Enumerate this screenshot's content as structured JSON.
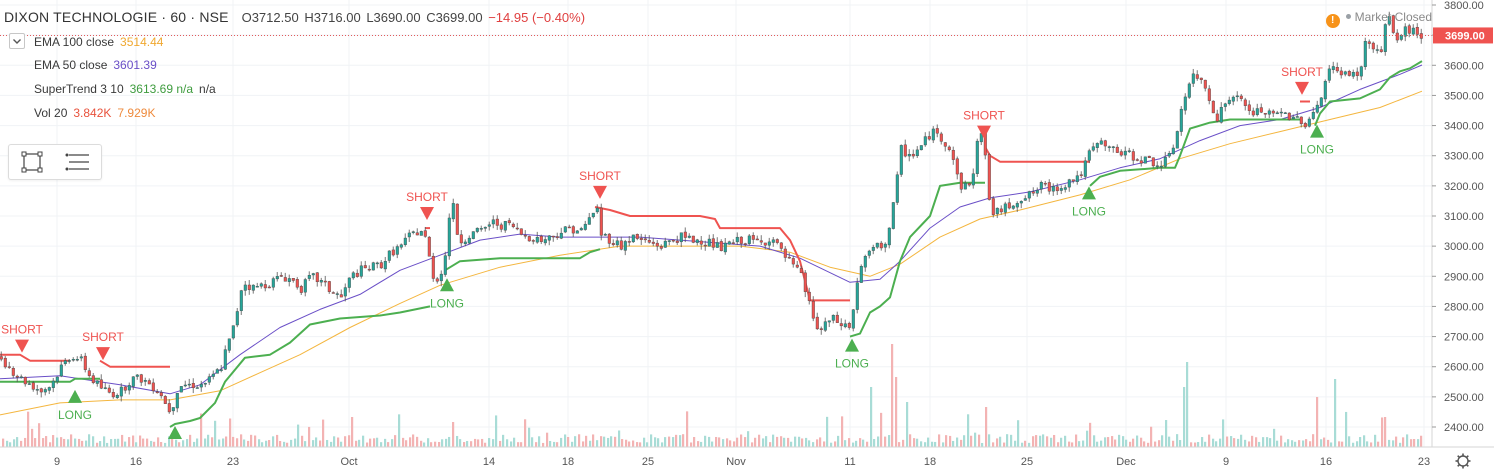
{
  "header": {
    "symbol": "DIXON TECHNOLOGIE · 60 · NSE",
    "open": "O3712.50",
    "high": "H3716.00",
    "low": "L3690.00",
    "close": "C3699.00",
    "change": "−14.95 (−0.40%)"
  },
  "indicators": [
    {
      "label": "EMA 100 close",
      "value": "3514.44",
      "color": "#f0a830"
    },
    {
      "label": "EMA 50 close",
      "value": "3601.39",
      "color": "#7b52c9"
    },
    {
      "label": "SuperTrend 3 10",
      "value": "3613.69  n/a",
      "extra": "n/a",
      "color": "#3f9c3f"
    },
    {
      "label": "Vol 20",
      "value": "3.842K",
      "extra": "7.929K",
      "color": "#e8523c",
      "extra_color": "#ee8a3c"
    }
  ],
  "status": {
    "label": "Market Closed"
  },
  "price_label": "3699.00",
  "colors": {
    "up": "#26a69a",
    "down": "#ef5350",
    "ema100": "#f4b63f",
    "ema50": "#6a4fc7",
    "supertrend_up": "#4caf50",
    "supertrend_down": "#ef5350",
    "long": "#4caf50",
    "short": "#ef5350"
  },
  "chart_data": {
    "type": "candlestick",
    "y_ticks": [
      3800,
      3700,
      3600,
      3500,
      3400,
      3300,
      3200,
      3100,
      3000,
      2900,
      2800,
      2700,
      2600,
      2500,
      2400
    ],
    "ylim": [
      2360,
      3820
    ],
    "x_ticks": [
      "9",
      "16",
      "23",
      "Oct",
      "14",
      "18",
      "25",
      "Nov",
      "11",
      "18",
      "25",
      "Dec",
      "9",
      "16",
      "23"
    ],
    "close_path": [
      [
        0,
        2630
      ],
      [
        10,
        2590
      ],
      [
        20,
        2560
      ],
      [
        30,
        2540
      ],
      [
        40,
        2520
      ],
      [
        50,
        2540
      ],
      [
        60,
        2600
      ],
      [
        70,
        2640
      ],
      [
        80,
        2620
      ],
      [
        90,
        2560
      ],
      [
        100,
        2530
      ],
      [
        110,
        2510
      ],
      [
        120,
        2520
      ],
      [
        130,
        2560
      ],
      [
        140,
        2560
      ],
      [
        150,
        2540
      ],
      [
        160,
        2510
      ],
      [
        165,
        2470
      ],
      [
        170,
        2450
      ],
      [
        175,
        2520
      ],
      [
        180,
        2540
      ],
      [
        190,
        2540
      ],
      [
        200,
        2540
      ],
      [
        210,
        2560
      ],
      [
        220,
        2600
      ],
      [
        225,
        2660
      ],
      [
        230,
        2700
      ],
      [
        235,
        2770
      ],
      [
        240,
        2860
      ],
      [
        245,
        2880
      ],
      [
        250,
        2860
      ],
      [
        260,
        2870
      ],
      [
        270,
        2880
      ],
      [
        280,
        2900
      ],
      [
        290,
        2890
      ],
      [
        300,
        2860
      ],
      [
        310,
        2900
      ],
      [
        320,
        2880
      ],
      [
        330,
        2850
      ],
      [
        340,
        2830
      ],
      [
        350,
        2900
      ],
      [
        360,
        2920
      ],
      [
        370,
        2930
      ],
      [
        380,
        2940
      ],
      [
        390,
        2980
      ],
      [
        400,
        3000
      ],
      [
        410,
        3040
      ],
      [
        420,
        3050
      ],
      [
        425,
        3020
      ],
      [
        430,
        2920
      ],
      [
        435,
        2880
      ],
      [
        440,
        2920
      ],
      [
        445,
        2980
      ],
      [
        450,
        3180
      ],
      [
        455,
        3050
      ],
      [
        460,
        3020
      ],
      [
        470,
        3040
      ],
      [
        480,
        3050
      ],
      [
        490,
        3080
      ],
      [
        500,
        3070
      ],
      [
        510,
        3070
      ],
      [
        520,
        3040
      ],
      [
        530,
        3030
      ],
      [
        540,
        3020
      ],
      [
        550,
        3030
      ],
      [
        560,
        3050
      ],
      [
        570,
        3060
      ],
      [
        580,
        3050
      ],
      [
        590,
        3100
      ],
      [
        595,
        3140
      ],
      [
        600,
        3040
      ],
      [
        610,
        3020
      ],
      [
        620,
        3000
      ],
      [
        630,
        3030
      ],
      [
        640,
        3020
      ],
      [
        650,
        3010
      ],
      [
        660,
        3000
      ],
      [
        670,
        3020
      ],
      [
        680,
        3030
      ],
      [
        690,
        3020
      ],
      [
        700,
        3020
      ],
      [
        710,
        3010
      ],
      [
        720,
        2990
      ],
      [
        730,
        3010
      ],
      [
        740,
        3020
      ],
      [
        750,
        3020
      ],
      [
        760,
        3010
      ],
      [
        770,
        3030
      ],
      [
        780,
        2980
      ],
      [
        790,
        2940
      ],
      [
        800,
        2900
      ],
      [
        805,
        2840
      ],
      [
        810,
        2790
      ],
      [
        815,
        2730
      ],
      [
        820,
        2720
      ],
      [
        830,
        2760
      ],
      [
        840,
        2740
      ],
      [
        850,
        2730
      ],
      [
        855,
        2870
      ],
      [
        860,
        2930
      ],
      [
        870,
        2990
      ],
      [
        880,
        3000
      ],
      [
        885,
        3020
      ],
      [
        890,
        3090
      ],
      [
        895,
        3200
      ],
      [
        900,
        3320
      ],
      [
        910,
        3300
      ],
      [
        920,
        3330
      ],
      [
        930,
        3380
      ],
      [
        940,
        3360
      ],
      [
        950,
        3320
      ],
      [
        955,
        3240
      ],
      [
        960,
        3200
      ],
      [
        970,
        3200
      ],
      [
        975,
        3330
      ],
      [
        980,
        3380
      ],
      [
        985,
        3270
      ],
      [
        990,
        3100
      ],
      [
        1000,
        3120
      ],
      [
        1010,
        3140
      ],
      [
        1020,
        3160
      ],
      [
        1030,
        3170
      ],
      [
        1040,
        3200
      ],
      [
        1050,
        3190
      ],
      [
        1060,
        3200
      ],
      [
        1070,
        3220
      ],
      [
        1080,
        3240
      ],
      [
        1090,
        3320
      ],
      [
        1100,
        3340
      ],
      [
        1110,
        3320
      ],
      [
        1120,
        3310
      ],
      [
        1130,
        3300
      ],
      [
        1140,
        3290
      ],
      [
        1150,
        3280
      ],
      [
        1160,
        3270
      ],
      [
        1170,
        3300
      ],
      [
        1180,
        3450
      ],
      [
        1190,
        3560
      ],
      [
        1200,
        3550
      ],
      [
        1210,
        3480
      ],
      [
        1215,
        3420
      ],
      [
        1220,
        3450
      ],
      [
        1230,
        3500
      ],
      [
        1240,
        3480
      ],
      [
        1250,
        3440
      ],
      [
        1260,
        3450
      ],
      [
        1270,
        3430
      ],
      [
        1280,
        3440
      ],
      [
        1290,
        3430
      ],
      [
        1300,
        3420
      ],
      [
        1305,
        3400
      ],
      [
        1310,
        3440
      ],
      [
        1320,
        3490
      ],
      [
        1325,
        3560
      ],
      [
        1330,
        3590
      ],
      [
        1340,
        3580
      ],
      [
        1350,
        3560
      ],
      [
        1360,
        3590
      ],
      [
        1365,
        3690
      ],
      [
        1370,
        3660
      ],
      [
        1380,
        3640
      ],
      [
        1385,
        3760
      ],
      [
        1390,
        3740
      ],
      [
        1395,
        3680
      ],
      [
        1400,
        3700
      ],
      [
        1405,
        3720
      ],
      [
        1415,
        3710
      ],
      [
        1422,
        3699
      ]
    ],
    "ema50_path": [
      [
        0,
        2560
      ],
      [
        60,
        2570
      ],
      [
        120,
        2540
      ],
      [
        170,
        2510
      ],
      [
        200,
        2540
      ],
      [
        240,
        2640
      ],
      [
        280,
        2730
      ],
      [
        320,
        2790
      ],
      [
        360,
        2840
      ],
      [
        400,
        2920
      ],
      [
        440,
        2970
      ],
      [
        480,
        3020
      ],
      [
        520,
        3040
      ],
      [
        560,
        3030
      ],
      [
        600,
        3030
      ],
      [
        640,
        3030
      ],
      [
        680,
        3020
      ],
      [
        720,
        3010
      ],
      [
        760,
        3000
      ],
      [
        800,
        2960
      ],
      [
        850,
        2880
      ],
      [
        880,
        2890
      ],
      [
        900,
        2950
      ],
      [
        930,
        3060
      ],
      [
        960,
        3130
      ],
      [
        990,
        3160
      ],
      [
        1030,
        3180
      ],
      [
        1080,
        3220
      ],
      [
        1120,
        3260
      ],
      [
        1160,
        3290
      ],
      [
        1200,
        3350
      ],
      [
        1240,
        3400
      ],
      [
        1280,
        3420
      ],
      [
        1320,
        3460
      ],
      [
        1360,
        3520
      ],
      [
        1400,
        3570
      ],
      [
        1422,
        3601
      ]
    ],
    "ema100_path": [
      [
        0,
        2440
      ],
      [
        60,
        2480
      ],
      [
        120,
        2490
      ],
      [
        170,
        2490
      ],
      [
        220,
        2520
      ],
      [
        260,
        2580
      ],
      [
        300,
        2640
      ],
      [
        350,
        2730
      ],
      [
        400,
        2810
      ],
      [
        440,
        2870
      ],
      [
        500,
        2930
      ],
      [
        560,
        2970
      ],
      [
        620,
        3000
      ],
      [
        680,
        3000
      ],
      [
        740,
        3000
      ],
      [
        790,
        2980
      ],
      [
        830,
        2930
      ],
      [
        870,
        2900
      ],
      [
        900,
        2940
      ],
      [
        940,
        3030
      ],
      [
        980,
        3090
      ],
      [
        1020,
        3120
      ],
      [
        1080,
        3170
      ],
      [
        1130,
        3220
      ],
      [
        1180,
        3290
      ],
      [
        1230,
        3340
      ],
      [
        1280,
        3380
      ],
      [
        1330,
        3420
      ],
      [
        1380,
        3460
      ],
      [
        1422,
        3514
      ]
    ],
    "supertrend_segments": [
      {
        "dir": "down",
        "path": [
          [
            0,
            2640
          ],
          [
            20,
            2640
          ],
          [
            30,
            2620
          ],
          [
            70,
            2620
          ]
        ]
      },
      {
        "dir": "up",
        "path": [
          [
            0,
            2550
          ],
          [
            70,
            2550
          ],
          [
            75,
            2560
          ],
          [
            100,
            2560
          ]
        ]
      },
      {
        "dir": "down",
        "path": [
          [
            100,
            2620
          ],
          [
            110,
            2600
          ],
          [
            170,
            2600
          ]
        ]
      },
      {
        "dir": "up",
        "path": [
          [
            170,
            2400
          ],
          [
            175,
            2410
          ],
          [
            190,
            2420
          ],
          [
            200,
            2430
          ],
          [
            215,
            2480
          ],
          [
            225,
            2550
          ],
          [
            235,
            2590
          ],
          [
            245,
            2630
          ],
          [
            270,
            2640
          ],
          [
            290,
            2680
          ],
          [
            310,
            2740
          ],
          [
            340,
            2760
          ],
          [
            380,
            2770
          ],
          [
            400,
            2780
          ],
          [
            430,
            2800
          ]
        ]
      },
      {
        "dir": "down",
        "path": [
          [
            425,
            3060
          ],
          [
            430,
            3060
          ]
        ]
      },
      {
        "dir": "up",
        "path": [
          [
            445,
            2920
          ],
          [
            460,
            2950
          ],
          [
            500,
            2960
          ],
          [
            540,
            2960
          ],
          [
            580,
            2960
          ],
          [
            590,
            2980
          ],
          [
            600,
            2990
          ]
        ]
      },
      {
        "dir": "down",
        "path": [
          [
            595,
            3130
          ],
          [
            610,
            3120
          ],
          [
            630,
            3100
          ],
          [
            700,
            3100
          ],
          [
            715,
            3090
          ],
          [
            720,
            3060
          ],
          [
            780,
            3060
          ],
          [
            790,
            3020
          ],
          [
            800,
            2950
          ],
          [
            810,
            2820
          ],
          [
            850,
            2820
          ]
        ]
      },
      {
        "dir": "up",
        "path": [
          [
            850,
            2700
          ],
          [
            860,
            2710
          ],
          [
            870,
            2780
          ],
          [
            880,
            2800
          ],
          [
            890,
            2830
          ],
          [
            900,
            2950
          ],
          [
            910,
            3030
          ],
          [
            930,
            3100
          ],
          [
            940,
            3200
          ],
          [
            960,
            3210
          ],
          [
            980,
            3210
          ],
          [
            985,
            3210
          ]
        ]
      },
      {
        "dir": "down",
        "path": [
          [
            985,
            3330
          ],
          [
            990,
            3300
          ],
          [
            1000,
            3280
          ],
          [
            1080,
            3280
          ],
          [
            1090,
            3280
          ]
        ]
      },
      {
        "dir": "up",
        "path": [
          [
            1090,
            3200
          ],
          [
            1100,
            3230
          ],
          [
            1120,
            3250
          ],
          [
            1160,
            3260
          ],
          [
            1175,
            3260
          ],
          [
            1180,
            3300
          ],
          [
            1190,
            3390
          ],
          [
            1210,
            3410
          ],
          [
            1230,
            3420
          ],
          [
            1300,
            3420
          ]
        ]
      },
      {
        "dir": "down",
        "path": [
          [
            1300,
            3480
          ],
          [
            1310,
            3480
          ]
        ]
      },
      {
        "dir": "up",
        "path": [
          [
            1315,
            3400
          ],
          [
            1320,
            3440
          ],
          [
            1330,
            3480
          ],
          [
            1360,
            3490
          ],
          [
            1380,
            3520
          ],
          [
            1390,
            3560
          ],
          [
            1400,
            3580
          ],
          [
            1410,
            3590
          ],
          [
            1422,
            3614
          ]
        ]
      }
    ],
    "signals": [
      {
        "type": "short",
        "x": 22,
        "price": 2650,
        "label": "SHORT"
      },
      {
        "type": "long",
        "x": 75,
        "price": 2520,
        "label": "LONG"
      },
      {
        "type": "short",
        "x": 103,
        "price": 2625,
        "label": "SHORT"
      },
      {
        "type": "long",
        "x": 175,
        "price": 2400,
        "label": "LONG"
      },
      {
        "type": "short",
        "x": 427,
        "price": 3090,
        "label": "SHORT"
      },
      {
        "type": "long",
        "x": 447,
        "price": 2890,
        "label": "LONG"
      },
      {
        "type": "short",
        "x": 600,
        "price": 3160,
        "label": "SHORT"
      },
      {
        "type": "long",
        "x": 852,
        "price": 2690,
        "label": "LONG"
      },
      {
        "type": "short",
        "x": 984,
        "price": 3360,
        "label": "SHORT"
      },
      {
        "type": "long",
        "x": 1089,
        "price": 3195,
        "label": "LONG"
      },
      {
        "type": "short",
        "x": 1302,
        "price": 3505,
        "label": "SHORT"
      },
      {
        "type": "long",
        "x": 1317,
        "price": 3400,
        "label": "LONG"
      }
    ],
    "volume_spikes": [
      {
        "x": 350,
        "v": 30
      },
      {
        "x": 452,
        "v": 25
      },
      {
        "x": 850,
        "v": 35
      },
      {
        "x": 870,
        "v": 60
      },
      {
        "x": 882,
        "v": 95
      },
      {
        "x": 886,
        "v": 80
      },
      {
        "x": 890,
        "v": 103
      },
      {
        "x": 895,
        "v": 70
      },
      {
        "x": 900,
        "v": 55
      },
      {
        "x": 905,
        "v": 45
      },
      {
        "x": 985,
        "v": 40
      },
      {
        "x": 990,
        "v": 45
      },
      {
        "x": 1182,
        "v": 60
      },
      {
        "x": 1185,
        "v": 85
      },
      {
        "x": 1315,
        "v": 50
      },
      {
        "x": 1333,
        "v": 68
      },
      {
        "x": 1385,
        "v": 30
      }
    ]
  }
}
